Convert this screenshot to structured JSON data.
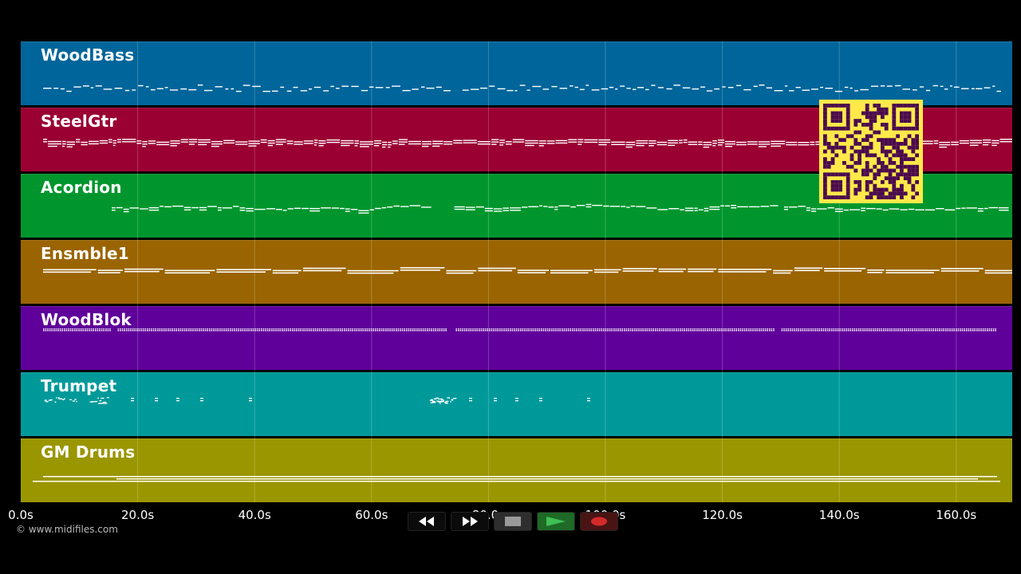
{
  "tracks": [
    {
      "name": "WoodBass",
      "color": "#00659a",
      "style": "bass"
    },
    {
      "name": "SteelGtr",
      "color": "#9a0032",
      "style": "dense"
    },
    {
      "name": "Acordion",
      "color": "#00962d",
      "style": "melody"
    },
    {
      "name": "Ensmble1",
      "color": "#9a6400",
      "style": "pad"
    },
    {
      "name": "WoodBlok",
      "color": "#5f009a",
      "style": "dots"
    },
    {
      "name": "Trumpet",
      "color": "#00999a",
      "style": "sparse"
    },
    {
      "name": "GM Drums",
      "color": "#9a9600",
      "style": "drums"
    }
  ],
  "timeline": {
    "ticks": [
      "0.0s",
      "20.0s",
      "40.0s",
      "60.0s",
      "80.0s",
      "100.0s",
      "120.0s",
      "140.0s",
      "160.0s"
    ],
    "duration_seconds": 170
  },
  "copyright": "© www.midifiles.com",
  "transport": {
    "rewind": "rewind-icon",
    "fast_forward": "fast-forward-icon",
    "stop": "stop-icon",
    "play": "play-icon",
    "record": "record-icon"
  },
  "qr_code": "qr-code"
}
